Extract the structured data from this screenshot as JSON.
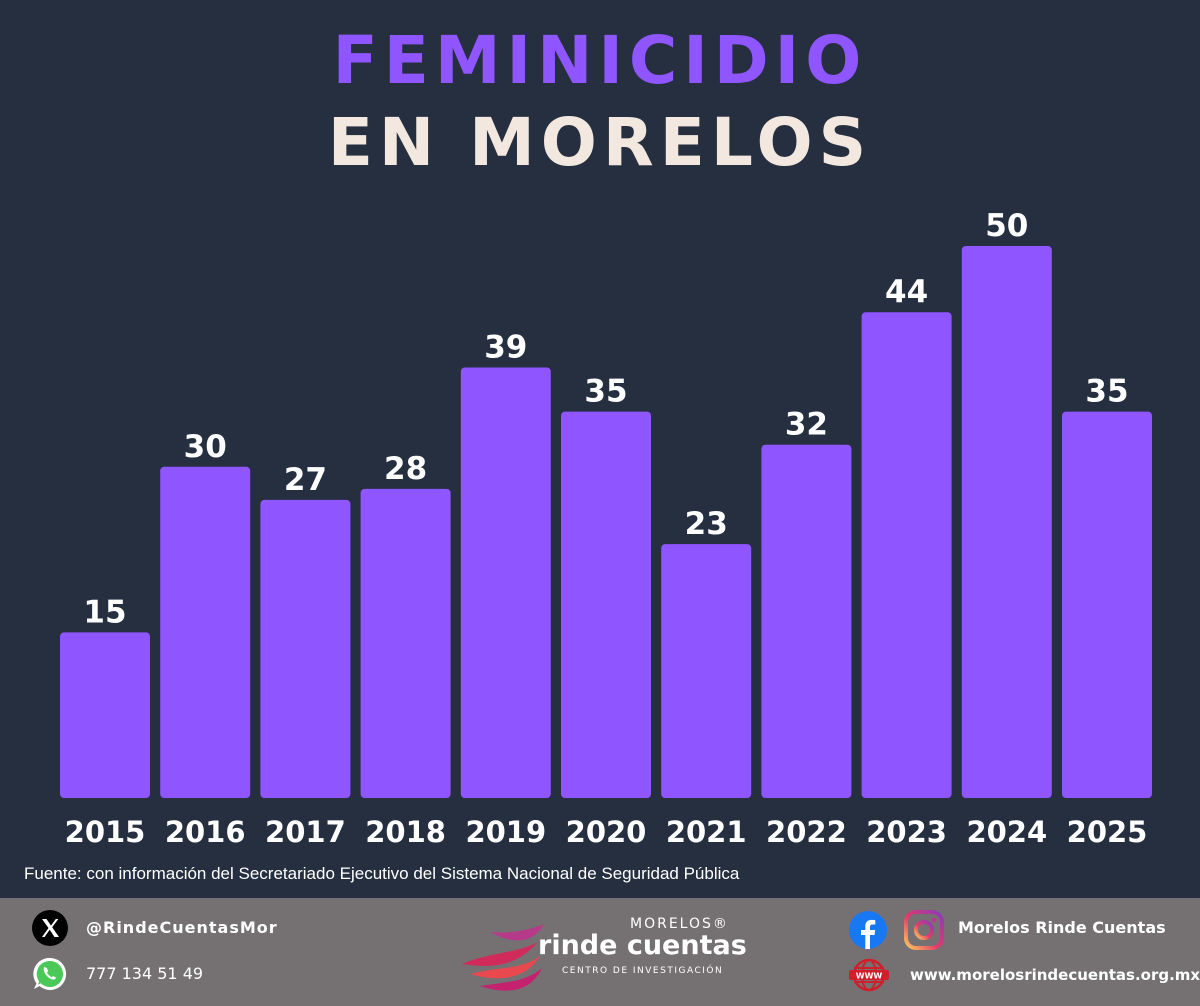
{
  "title": {
    "line1": "FEMINICIDIO",
    "line2": "EN MORELOS",
    "line1_color": "#8f55ff",
    "line2_color": "#f2e8df"
  },
  "chart_data": {
    "type": "bar",
    "title": "FEMINICIDIO EN MORELOS",
    "categories": [
      "2015",
      "2016",
      "2017",
      "2018",
      "2019",
      "2020",
      "2021",
      "2022",
      "2023",
      "2024",
      "2025"
    ],
    "values": [
      15,
      30,
      27,
      28,
      39,
      35,
      23,
      32,
      44,
      50,
      35
    ],
    "xlabel": "",
    "ylabel": "",
    "ylim": [
      0,
      50
    ],
    "grid": false,
    "legend": "none",
    "bar_color": "#8f55ff",
    "label_color": "#ffffff"
  },
  "source": {
    "text": "Fuente: con información del Secretariado Ejecutivo del Sistema Nacional de Seguridad Pública",
    "color": "#ffffff"
  },
  "footer": {
    "background": "#757173",
    "twitter_handle": "@RindeCuentasMor",
    "whatsapp_number": "777 134 51 49",
    "social_name": "Morelos Rinde Cuentas",
    "website": "www.morelosrindecuentas.org.mx",
    "logo": {
      "top": "MORELOS®",
      "main": "rinde cuentas",
      "sub": "CENTRO DE INVESTIGACIÓN"
    },
    "icons": {
      "x": "x-logo-icon",
      "whatsapp": "whatsapp-icon",
      "facebook": "facebook-icon",
      "instagram": "instagram-icon",
      "www": "www-globe-icon"
    }
  }
}
